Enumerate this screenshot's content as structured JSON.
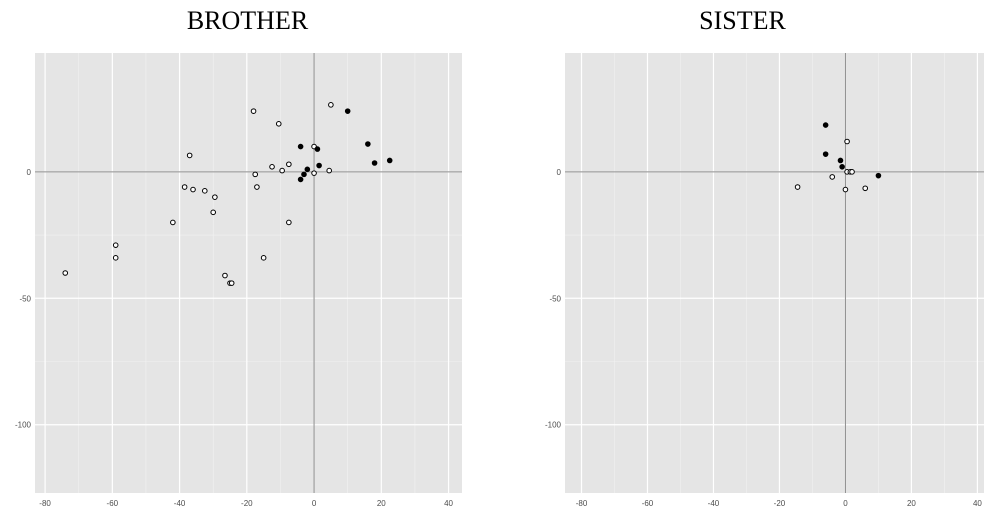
{
  "chart_data": [
    {
      "type": "scatter",
      "title": "BROTHER",
      "xlabel": "",
      "ylabel": "",
      "xlim": [
        -83,
        44
      ],
      "ylim": [
        -127,
        47
      ],
      "xticks": [
        -80,
        -60,
        -40,
        -20,
        0,
        20,
        40
      ],
      "yticks": [
        0,
        -50,
        -100
      ],
      "grid": true,
      "reference_lines": {
        "x": 0,
        "y": 0
      },
      "series": [
        {
          "marker": "hollow",
          "points": [
            [
              -74,
              -40
            ],
            [
              -59,
              -29
            ],
            [
              -59,
              -34
            ],
            [
              -42,
              -20
            ],
            [
              -38.5,
              -6
            ],
            [
              -37,
              6.5
            ],
            [
              -36,
              -7
            ],
            [
              -32.5,
              -7.5
            ],
            [
              -30,
              -16
            ],
            [
              -29.5,
              -10
            ],
            [
              -26.5,
              -41
            ],
            [
              -25,
              -44
            ],
            [
              -24.5,
              -44
            ],
            [
              -18,
              24
            ],
            [
              -17.5,
              -1
            ],
            [
              -17,
              -6
            ],
            [
              -15,
              -34
            ],
            [
              -12.5,
              2
            ],
            [
              -10.5,
              19
            ],
            [
              -9.5,
              0.5
            ],
            [
              -7.5,
              -20
            ],
            [
              -7.5,
              3
            ],
            [
              0,
              10
            ],
            [
              0,
              -0.5
            ],
            [
              5,
              26.5
            ],
            [
              4.5,
              0.5
            ]
          ]
        },
        {
          "marker": "filled",
          "points": [
            [
              -4,
              10
            ],
            [
              -4,
              -3
            ],
            [
              -3,
              -1
            ],
            [
              -2,
              1
            ],
            [
              1,
              9
            ],
            [
              1.5,
              2.5
            ],
            [
              10,
              24
            ],
            [
              16,
              11
            ],
            [
              18,
              3.5
            ],
            [
              22.5,
              4.5
            ]
          ]
        }
      ]
    },
    {
      "type": "scatter",
      "title": "SISTER",
      "xlabel": "",
      "ylabel": "",
      "xlim": [
        -85,
        42
      ],
      "ylim": [
        -127,
        47
      ],
      "xticks": [
        -80,
        -60,
        -40,
        -20,
        0,
        20,
        40
      ],
      "yticks": [
        0,
        -50,
        -100
      ],
      "grid": true,
      "reference_lines": {
        "x": 0,
        "y": 0
      },
      "series": [
        {
          "marker": "hollow",
          "points": [
            [
              -14.5,
              -6
            ],
            [
              -4,
              -2
            ],
            [
              0.5,
              12
            ],
            [
              0,
              -7
            ],
            [
              0.5,
              0
            ],
            [
              1.5,
              0
            ],
            [
              2,
              0
            ],
            [
              6,
              -6.5
            ]
          ]
        },
        {
          "marker": "filled",
          "points": [
            [
              -6,
              18.5
            ],
            [
              -6,
              7
            ],
            [
              -1.5,
              4.5
            ],
            [
              -1,
              2
            ],
            [
              10,
              -1.5
            ]
          ]
        }
      ]
    }
  ]
}
